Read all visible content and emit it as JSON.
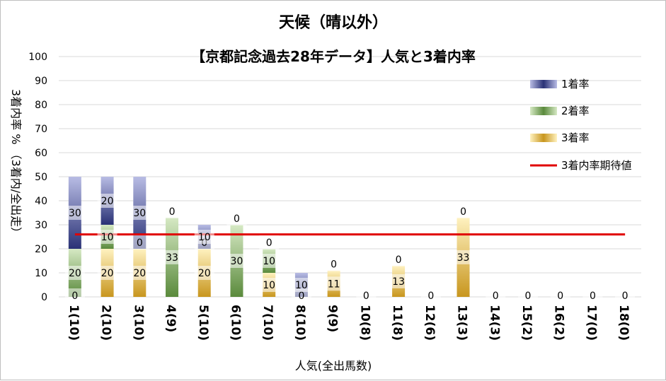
{
  "chart_data": {
    "type": "bar",
    "stacked": true,
    "title": "天候（晴以外）",
    "subtitle": "【京都記念過去28年データ】人気と3着内率",
    "xlabel": "人気(全出馬数)",
    "ylabel": "3着内率 %  （3着内/全出走）",
    "ylim": [
      0,
      100
    ],
    "yticks": [
      "0",
      "10",
      "20",
      "30",
      "40",
      "50",
      "60",
      "70",
      "80",
      "90",
      "100"
    ],
    "categories": [
      "1(10)",
      "2(10)",
      "3(10)",
      "4(9)",
      "5(10)",
      "6(10)",
      "7(10)",
      "8(10)",
      "9(9)",
      "10(8)",
      "11(8)",
      "12(6)",
      "13(3)",
      "14(3)",
      "15(2)",
      "16(2)",
      "17(0)",
      "18(0)"
    ],
    "series": [
      {
        "name": "3着率",
        "color": "#c8961e",
        "values": [
          0,
          20,
          20,
          0,
          20,
          0,
          10,
          0,
          11,
          0,
          13,
          0,
          33,
          0,
          0,
          0,
          0,
          0
        ]
      },
      {
        "name": "2着率",
        "color": "#5a8a3c",
        "values": [
          20,
          10,
          0,
          33,
          0,
          30,
          10,
          0,
          0,
          0,
          0,
          0,
          0,
          0,
          0,
          0,
          0,
          0
        ]
      },
      {
        "name": "1着率",
        "color": "#2a3276",
        "values": [
          30,
          20,
          30,
          0,
          10,
          0,
          0,
          10,
          0,
          0,
          0,
          0,
          0,
          0,
          0,
          0,
          0,
          0
        ]
      }
    ],
    "labels": {
      "3着率": [
        "0",
        "20",
        "20",
        "",
        "20",
        "",
        "10",
        "",
        "11",
        "",
        "13",
        "",
        "33",
        "",
        "",
        "",
        "",
        ""
      ],
      "2着率": [
        "20",
        "10",
        "0",
        "33",
        "0",
        "30",
        "10",
        "0",
        "",
        "",
        "",
        "",
        "",
        "",
        "",
        "",
        "",
        ""
      ],
      "1着率": [
        "30",
        "20",
        "30",
        "0",
        "10",
        "0",
        "0",
        "10",
        "0",
        "0",
        "0",
        "0",
        "0",
        "0",
        "0",
        "0",
        "0",
        "0"
      ]
    },
    "reference_line": {
      "name": "3着内率期待値",
      "value": 26,
      "color": "#e00000"
    },
    "legend": [
      "1着率",
      "2着率",
      "3着率",
      "3着内率期待値"
    ],
    "legend_position": "right",
    "grid": true
  }
}
